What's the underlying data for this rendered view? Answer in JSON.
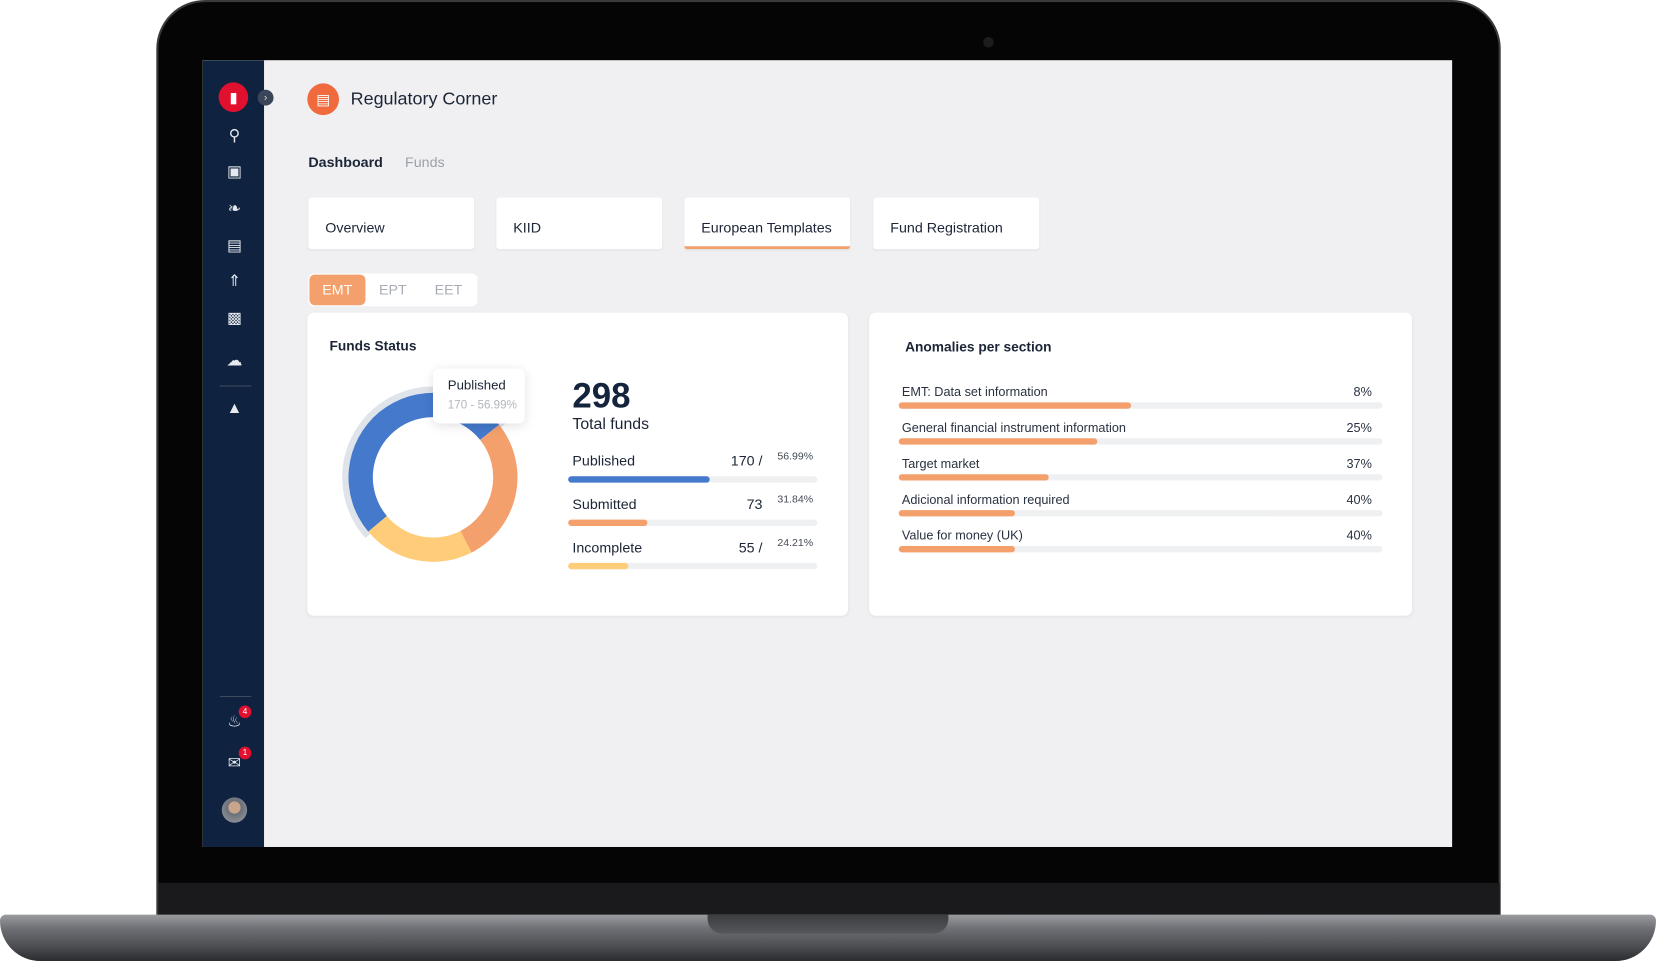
{
  "app": {
    "title": "Regulatory Corner",
    "logo": "bar-chart-logo"
  },
  "nav": {
    "items": [
      {
        "label": "Dashboard",
        "active": true
      },
      {
        "label": "Funds",
        "active": false
      }
    ]
  },
  "tabs": [
    {
      "label": "Overview"
    },
    {
      "label": "KIID"
    },
    {
      "label": "European Templates",
      "active": true
    },
    {
      "label": "Fund Registration"
    }
  ],
  "segments": [
    {
      "label": "EMT",
      "active": true
    },
    {
      "label": "EPT"
    },
    {
      "label": "EET"
    }
  ],
  "sidebar": {
    "icons": [
      "search-chart-icon",
      "briefcase-icon",
      "leaf-icon",
      "book-icon",
      "chart-line-icon",
      "atm-icon",
      "cloud-download-icon",
      "shopping-bag-icon"
    ],
    "notifications": "4",
    "messages": "1"
  },
  "colors": {
    "published": "#4479cc",
    "submitted": "#f4a06c",
    "incomplete": "#ffcd7a",
    "accent": "#f4a06c",
    "sidebar": "#0f2340"
  },
  "funds_status": {
    "title": "Funds Status",
    "total": "298",
    "total_label": "Total funds",
    "tooltip": {
      "label": "Published",
      "value": "170 - 56.99%"
    },
    "rows": [
      {
        "label": "Published",
        "count": "170 /",
        "pct": "56.99%",
        "value": 56.99
      },
      {
        "label": "Submitted",
        "count": "73",
        "pct": "31.84%",
        "value": 31.84
      },
      {
        "label": "Incomplete",
        "count": "55 /",
        "pct": "24.21%",
        "value": 24.21
      }
    ]
  },
  "anomalies": {
    "title": "Anomalies per section",
    "rows": [
      {
        "label": "EMT: Data set information",
        "pct": "8%",
        "fill": 48
      },
      {
        "label": "General financial instrument information",
        "pct": "25%",
        "fill": 41
      },
      {
        "label": "Target market",
        "pct": "37%",
        "fill": 31
      },
      {
        "label": "Adicional information required",
        "pct": "40%",
        "fill": 24
      },
      {
        "label": "Value for money (UK)",
        "pct": "40%",
        "fill": 24
      }
    ]
  }
}
